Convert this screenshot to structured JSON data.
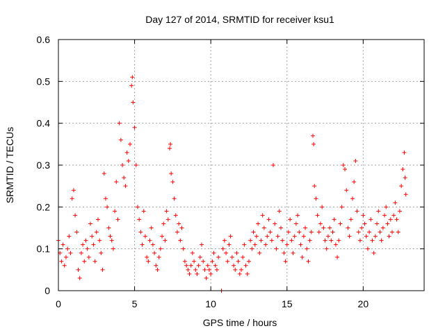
{
  "chart_data": {
    "type": "scatter",
    "title": "Day 127 of 2014, SRMTID for receiver ksu1",
    "xlabel": "GPS time / hours",
    "ylabel": "SRMTID / TECUs",
    "xlim": [
      0,
      24
    ],
    "ylim": [
      0,
      0.6
    ],
    "x_ticks": [
      0,
      5,
      10,
      15,
      20
    ],
    "y_ticks": [
      0,
      0.1,
      0.2,
      0.3,
      0.4,
      0.5,
      0.6
    ],
    "x_tick_labels": [
      "0",
      "5",
      "10",
      "15",
      "20"
    ],
    "y_tick_labels": [
      "0",
      "0.1",
      "0.2",
      "0.3",
      "0.4",
      "0.5",
      "0.6"
    ],
    "grid": true,
    "series": [
      {
        "name": "SRMTID",
        "marker": "plus",
        "color": "#ff0000",
        "points": [
          [
            0.0,
            0.12
          ],
          [
            0.1,
            0.09
          ],
          [
            0.2,
            0.07
          ],
          [
            0.3,
            0.11
          ],
          [
            0.4,
            0.06
          ],
          [
            0.5,
            0.08
          ],
          [
            0.6,
            0.1
          ],
          [
            0.7,
            0.13
          ],
          [
            0.8,
            0.09
          ],
          [
            0.9,
            0.22
          ],
          [
            1.0,
            0.24
          ],
          [
            1.1,
            0.18
          ],
          [
            1.2,
            0.14
          ],
          [
            1.3,
            0.05
          ],
          [
            1.4,
            0.03
          ],
          [
            1.5,
            0.09
          ],
          [
            1.6,
            0.11
          ],
          [
            1.7,
            0.07
          ],
          [
            1.8,
            0.12
          ],
          [
            1.9,
            0.1
          ],
          [
            2.0,
            0.08
          ],
          [
            2.1,
            0.16
          ],
          [
            2.2,
            0.13
          ],
          [
            2.3,
            0.11
          ],
          [
            2.4,
            0.07
          ],
          [
            2.5,
            0.14
          ],
          [
            2.6,
            0.17
          ],
          [
            2.7,
            0.12
          ],
          [
            2.8,
            0.09
          ],
          [
            2.9,
            0.05
          ],
          [
            3.0,
            0.28
          ],
          [
            3.1,
            0.22
          ],
          [
            3.2,
            0.2
          ],
          [
            3.3,
            0.15
          ],
          [
            3.4,
            0.13
          ],
          [
            3.5,
            0.12
          ],
          [
            3.6,
            0.1
          ],
          [
            3.7,
            0.19
          ],
          [
            3.8,
            0.26
          ],
          [
            3.9,
            0.17
          ],
          [
            4.0,
            0.4
          ],
          [
            4.1,
            0.36
          ],
          [
            4.2,
            0.3
          ],
          [
            4.3,
            0.27
          ],
          [
            4.4,
            0.25
          ],
          [
            4.5,
            0.33
          ],
          [
            4.6,
            0.31
          ],
          [
            4.7,
            0.35
          ],
          [
            4.8,
            0.49
          ],
          [
            4.85,
            0.51
          ],
          [
            4.9,
            0.45
          ],
          [
            5.0,
            0.39
          ],
          [
            5.1,
            0.3
          ],
          [
            5.2,
            0.2
          ],
          [
            5.3,
            0.17
          ],
          [
            5.4,
            0.14
          ],
          [
            5.5,
            0.11
          ],
          [
            5.6,
            0.19
          ],
          [
            5.7,
            0.13
          ],
          [
            5.8,
            0.08
          ],
          [
            5.9,
            0.07
          ],
          [
            6.0,
            0.12
          ],
          [
            6.1,
            0.15
          ],
          [
            6.2,
            0.11
          ],
          [
            6.3,
            0.09
          ],
          [
            6.4,
            0.06
          ],
          [
            6.5,
            0.05
          ],
          [
            6.6,
            0.08
          ],
          [
            6.7,
            0.1
          ],
          [
            6.8,
            0.13
          ],
          [
            6.9,
            0.16
          ],
          [
            7.0,
            0.12
          ],
          [
            7.1,
            0.19
          ],
          [
            7.2,
            0.17
          ],
          [
            7.3,
            0.34
          ],
          [
            7.35,
            0.35
          ],
          [
            7.4,
            0.28
          ],
          [
            7.5,
            0.26
          ],
          [
            7.6,
            0.22
          ],
          [
            7.7,
            0.18
          ],
          [
            7.8,
            0.14
          ],
          [
            7.9,
            0.16
          ],
          [
            8.0,
            0.12
          ],
          [
            8.1,
            0.15
          ],
          [
            8.2,
            0.1
          ],
          [
            8.3,
            0.07
          ],
          [
            8.4,
            0.06
          ],
          [
            8.5,
            0.05
          ],
          [
            8.6,
            0.04
          ],
          [
            8.7,
            0.06
          ],
          [
            8.8,
            0.09
          ],
          [
            8.9,
            0.07
          ],
          [
            9.0,
            0.05
          ],
          [
            9.1,
            0.04
          ],
          [
            9.2,
            0.06
          ],
          [
            9.3,
            0.08
          ],
          [
            9.4,
            0.11
          ],
          [
            9.5,
            0.07
          ],
          [
            9.6,
            0.05
          ],
          [
            9.7,
            0.03
          ],
          [
            9.8,
            0.06
          ],
          [
            9.9,
            0.05
          ],
          [
            10.0,
            0.04
          ],
          [
            10.1,
            0.07
          ],
          [
            10.2,
            0.09
          ],
          [
            10.3,
            0.06
          ],
          [
            10.4,
            0.05
          ],
          [
            10.5,
            0.08
          ],
          [
            10.7,
            0.0
          ],
          [
            10.8,
            0.1
          ],
          [
            10.9,
            0.12
          ],
          [
            11.0,
            0.09
          ],
          [
            11.1,
            0.07
          ],
          [
            11.2,
            0.11
          ],
          [
            11.3,
            0.13
          ],
          [
            11.4,
            0.08
          ],
          [
            11.5,
            0.06
          ],
          [
            11.6,
            0.05
          ],
          [
            11.7,
            0.09
          ],
          [
            11.8,
            0.07
          ],
          [
            11.9,
            0.04
          ],
          [
            12.0,
            0.05
          ],
          [
            12.1,
            0.08
          ],
          [
            12.2,
            0.11
          ],
          [
            12.3,
            0.06
          ],
          [
            12.4,
            0.04
          ],
          [
            12.5,
            0.07
          ],
          [
            12.6,
            0.12
          ],
          [
            12.7,
            0.1
          ],
          [
            12.8,
            0.14
          ],
          [
            12.9,
            0.11
          ],
          [
            13.0,
            0.13
          ],
          [
            13.1,
            0.16
          ],
          [
            13.2,
            0.09
          ],
          [
            13.3,
            0.12
          ],
          [
            13.4,
            0.18
          ],
          [
            13.5,
            0.15
          ],
          [
            13.6,
            0.11
          ],
          [
            13.7,
            0.13
          ],
          [
            13.8,
            0.17
          ],
          [
            13.9,
            0.14
          ],
          [
            14.0,
            0.12
          ],
          [
            14.1,
            0.3
          ],
          [
            14.2,
            0.16
          ],
          [
            14.3,
            0.1
          ],
          [
            14.4,
            0.13
          ],
          [
            14.5,
            0.19
          ],
          [
            14.6,
            0.15
          ],
          [
            14.7,
            0.12
          ],
          [
            14.8,
            0.09
          ],
          [
            14.9,
            0.07
          ],
          [
            15.0,
            0.11
          ],
          [
            15.1,
            0.14
          ],
          [
            15.2,
            0.17
          ],
          [
            15.3,
            0.12
          ],
          [
            15.4,
            0.09
          ],
          [
            15.5,
            0.13
          ],
          [
            15.6,
            0.16
          ],
          [
            15.7,
            0.18
          ],
          [
            15.8,
            0.14
          ],
          [
            15.9,
            0.11
          ],
          [
            16.0,
            0.08
          ],
          [
            16.1,
            0.13
          ],
          [
            16.2,
            0.15
          ],
          [
            16.3,
            0.1
          ],
          [
            16.4,
            0.07
          ],
          [
            16.5,
            0.12
          ],
          [
            16.6,
            0.14
          ],
          [
            16.7,
            0.37
          ],
          [
            16.75,
            0.35
          ],
          [
            16.8,
            0.25
          ],
          [
            16.9,
            0.22
          ],
          [
            17.0,
            0.18
          ],
          [
            17.1,
            0.14
          ],
          [
            17.2,
            0.16
          ],
          [
            17.3,
            0.2
          ],
          [
            17.4,
            0.15
          ],
          [
            17.5,
            0.12
          ],
          [
            17.6,
            0.1
          ],
          [
            17.7,
            0.13
          ],
          [
            17.8,
            0.15
          ],
          [
            17.9,
            0.12
          ],
          [
            18.0,
            0.14
          ],
          [
            18.1,
            0.17
          ],
          [
            18.2,
            0.11
          ],
          [
            18.3,
            0.08
          ],
          [
            18.4,
            0.12
          ],
          [
            18.5,
            0.16
          ],
          [
            18.6,
            0.2
          ],
          [
            18.7,
            0.3
          ],
          [
            18.8,
            0.29
          ],
          [
            18.9,
            0.24
          ],
          [
            19.0,
            0.15
          ],
          [
            19.1,
            0.13
          ],
          [
            19.2,
            0.17
          ],
          [
            19.3,
            0.22
          ],
          [
            19.4,
            0.26
          ],
          [
            19.5,
            0.31
          ],
          [
            19.6,
            0.19
          ],
          [
            19.7,
            0.14
          ],
          [
            19.8,
            0.12
          ],
          [
            19.9,
            0.15
          ],
          [
            20.0,
            0.18
          ],
          [
            20.1,
            0.16
          ],
          [
            20.2,
            0.13
          ],
          [
            20.3,
            0.1
          ],
          [
            20.4,
            0.14
          ],
          [
            20.5,
            0.17
          ],
          [
            20.6,
            0.12
          ],
          [
            20.7,
            0.09
          ],
          [
            20.8,
            0.13
          ],
          [
            20.9,
            0.16
          ],
          [
            21.0,
            0.19
          ],
          [
            21.1,
            0.14
          ],
          [
            21.2,
            0.12
          ],
          [
            21.3,
            0.15
          ],
          [
            21.4,
            0.18
          ],
          [
            21.5,
            0.2
          ],
          [
            21.6,
            0.16
          ],
          [
            21.7,
            0.13
          ],
          [
            21.8,
            0.17
          ],
          [
            21.9,
            0.14
          ],
          [
            22.0,
            0.18
          ],
          [
            22.1,
            0.21
          ],
          [
            22.2,
            0.17
          ],
          [
            22.3,
            0.14
          ],
          [
            22.4,
            0.19
          ],
          [
            22.5,
            0.25
          ],
          [
            22.6,
            0.29
          ],
          [
            22.7,
            0.33
          ],
          [
            22.75,
            0.27
          ],
          [
            22.8,
            0.23
          ]
        ]
      }
    ]
  }
}
